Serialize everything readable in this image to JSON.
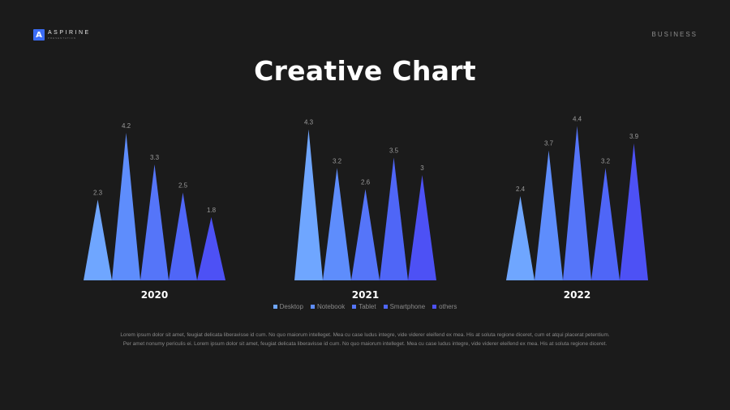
{
  "brand": {
    "mark": "A",
    "name": "ASPIRINE",
    "tagline": "PRESENTATION"
  },
  "category": "BUSINESS",
  "title": "Creative Chart",
  "legend": [
    {
      "label": "Desktop",
      "color": "#6fa6ff"
    },
    {
      "label": "Notebook",
      "color": "#5e8dfc"
    },
    {
      "label": "Tablet",
      "color": "#5575f9"
    },
    {
      "label": "Smartphone",
      "color": "#4f66f7"
    },
    {
      "label": "others",
      "color": "#4d51f5"
    }
  ],
  "body_text": "Lorem ipsum dolor sit amet, feugiat delicata liberavisse id cum. No quo maiorum intelleget. Mea cu case ludus integre, vide viderer eleifend ex mea. His at soluta regione diceret, cum et atqui placerat petentium. Per amet nonumy periculis ei. Lorem ipsum dolor sit amet, feugiat delicata liberavisse id cum. No quo maiorum intelleget. Mea cu case ludus integre, vide viderer eleifend ex mea. His at soluta regione diceret.",
  "chart_data": [
    {
      "type": "bar",
      "title": "2020",
      "categories": [
        "Desktop",
        "Notebook",
        "Tablet",
        "Smartphone",
        "others"
      ],
      "values": [
        2.3,
        4.2,
        3.3,
        2.5,
        1.8
      ],
      "ylim": [
        0,
        4.5
      ]
    },
    {
      "type": "bar",
      "title": "2021",
      "categories": [
        "Desktop",
        "Notebook",
        "Tablet",
        "Smartphone",
        "others"
      ],
      "values": [
        4.3,
        3.2,
        2.6,
        3.5,
        3
      ],
      "ylim": [
        0,
        4.5
      ]
    },
    {
      "type": "bar",
      "title": "2022",
      "categories": [
        "Desktop",
        "Notebook",
        "Tablet",
        "Smartphone",
        "others"
      ],
      "values": [
        2.4,
        3.7,
        4.4,
        3.2,
        3.9
      ],
      "ylim": [
        0,
        4.5
      ]
    }
  ]
}
